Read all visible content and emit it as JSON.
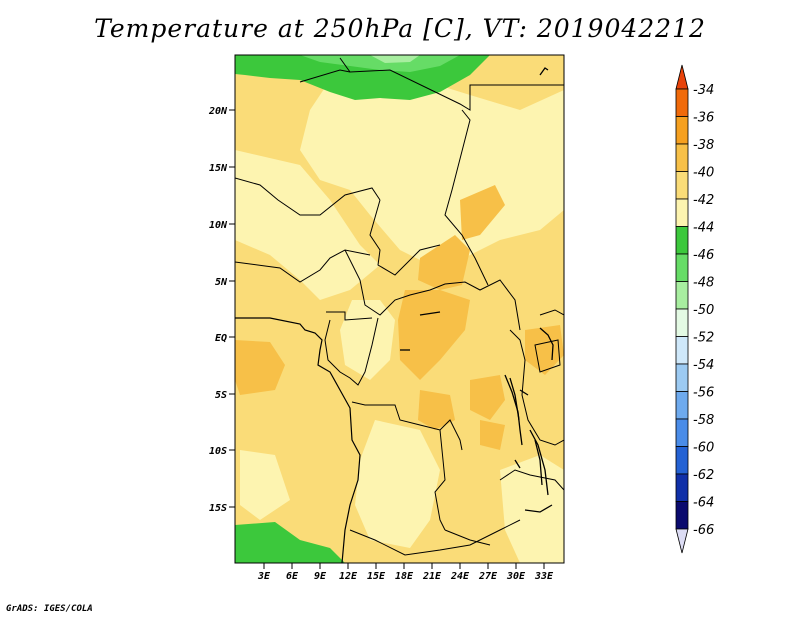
{
  "title": "Temperature at 250hPa [C], VT: 2019042212",
  "credit": "GrADS: IGES/COLA",
  "map": {
    "lat_labels": [
      "20N",
      "15N",
      "10N",
      "5N",
      "EQ",
      "5S",
      "10S",
      "15S"
    ],
    "lon_labels": [
      "3E",
      "6E",
      "9E",
      "12E",
      "15E",
      "18E",
      "21E",
      "24E",
      "27E",
      "30E",
      "33E"
    ]
  },
  "colorbar": {
    "labels": [
      "-34",
      "-36",
      "-38",
      "-40",
      "-42",
      "-44",
      "-46",
      "-48",
      "-50",
      "-52",
      "-54",
      "-56",
      "-58",
      "-60",
      "-62",
      "-64",
      "-66"
    ],
    "colors": [
      "#f04a0a",
      "#f06a0a",
      "#f5a020",
      "#f7c048",
      "#fadc78",
      "#fdf4b0",
      "#3cc83c",
      "#66dc66",
      "#a8eea0",
      "#e4fae4",
      "#cfe8fa",
      "#9ccaf2",
      "#6eaaee",
      "#4a8ce8",
      "#2462d4",
      "#1030a8",
      "#0a0a6e"
    ],
    "cap_top": "#e8430a",
    "cap_bottom": "#dcdcf4"
  }
}
